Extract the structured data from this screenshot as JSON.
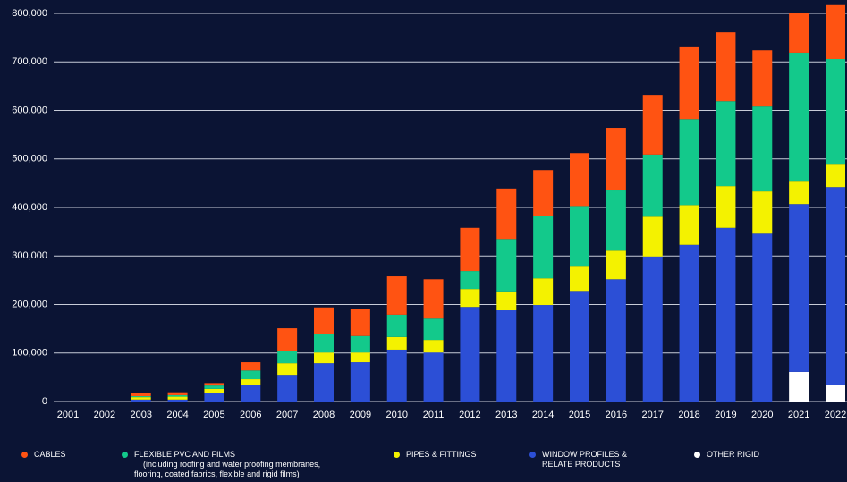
{
  "chart_data": {
    "type": "stacked_bar",
    "categories": [
      "2001",
      "2002",
      "2003",
      "2004",
      "2005",
      "2006",
      "2007",
      "2008",
      "2009",
      "2010",
      "2011",
      "2012",
      "2013",
      "2014",
      "2015",
      "2016",
      "2017",
      "2018",
      "2019",
      "2020",
      "2021",
      "2022"
    ],
    "ylim": [
      0,
      820000
    ],
    "yticks": [
      0,
      {
        "value": 100000,
        "label": "100,000"
      },
      {
        "value": 200000,
        "label": "200,000"
      },
      {
        "value": 300000,
        "label": "300,000"
      },
      {
        "value": 400000,
        "label": "400,000"
      },
      {
        "value": 500000,
        "label": "500,000"
      },
      {
        "value": 600000,
        "label": "600,000"
      },
      {
        "value": 700000,
        "label": "700,000"
      },
      {
        "value": 800000,
        "label": "800,000"
      }
    ],
    "grid": true,
    "series": [
      {
        "name": "OTHER RIGID",
        "color": "#ffffff",
        "values": [
          0,
          0,
          0,
          0,
          0,
          0,
          0,
          0,
          0,
          0,
          0,
          0,
          0,
          0,
          0,
          0,
          0,
          0,
          0,
          0,
          61000,
          35000
        ]
      },
      {
        "name": "WINDOW PROFILES & RELATE PRODUCTS",
        "color": "#2c4fd6",
        "values": [
          0,
          0,
          4000,
          4000,
          17000,
          35000,
          55000,
          79000,
          81000,
          107000,
          101000,
          195000,
          188000,
          199000,
          228000,
          252000,
          299000,
          323000,
          358000,
          346000,
          346000,
          407000
        ]
      },
      {
        "name": "PIPES & FITTINGS",
        "color": "#f4f200",
        "values": [
          0,
          0,
          5000,
          6000,
          9000,
          11000,
          24000,
          22000,
          20000,
          26000,
          26000,
          37000,
          39000,
          55000,
          50000,
          59000,
          82000,
          82000,
          86000,
          87000,
          48000,
          48000
        ]
      },
      {
        "name": "FLEXIBLE PVC AND FILMS",
        "color": "#13c98b",
        "note": [
          "(including roofing and water proofing membranes,",
          "flooring, coated fabrics, flexible and rigid films)"
        ],
        "values": [
          0,
          0,
          2000,
          3000,
          7000,
          18000,
          26000,
          39000,
          34000,
          46000,
          44000,
          37000,
          108000,
          129000,
          125000,
          124000,
          128000,
          177000,
          175000,
          175000,
          264000,
          216000
        ]
      },
      {
        "name": "CABLES",
        "color": "#ff5312",
        "values": [
          0,
          0,
          6000,
          6000,
          5000,
          17000,
          46000,
          54000,
          55000,
          79000,
          81000,
          89000,
          104000,
          94000,
          109000,
          129000,
          123000,
          150000,
          142000,
          116000,
          81000,
          111000
        ]
      }
    ],
    "legend_order": [
      4,
      3,
      2,
      1,
      0
    ]
  }
}
